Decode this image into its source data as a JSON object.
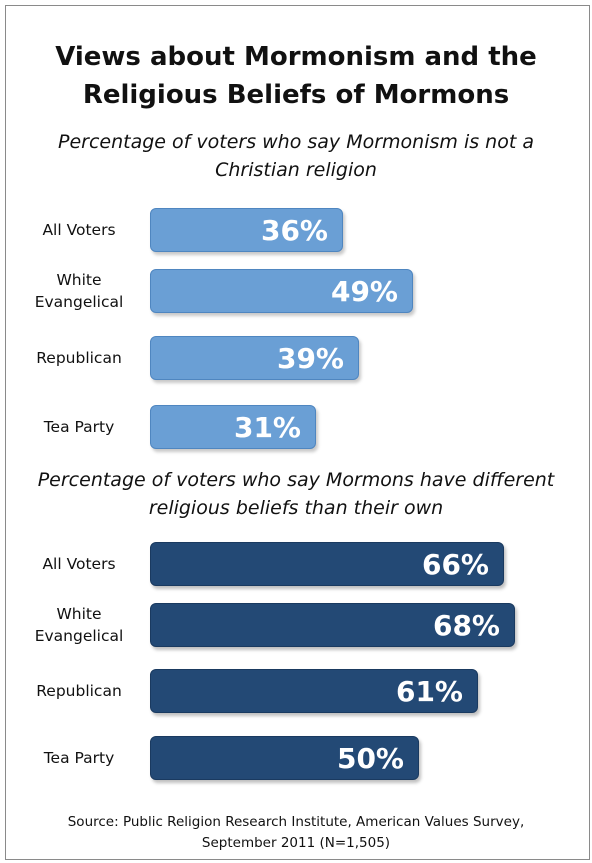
{
  "title_line1": "Views about Mormonism and the",
  "title_line2": "Religious Beliefs of Mormons",
  "source_line1": "Source: Public Religion Research Institute, American Values Survey,",
  "source_line2": "September 2011 (N=1,505)",
  "colors": {
    "panel1_bar": "#6a9fd5",
    "panel2_bar": "#234975",
    "label_text": "#ffffff"
  },
  "chart_data": [
    {
      "type": "bar",
      "orientation": "horizontal",
      "subtitle_line1": "Percentage of voters who say Mormonism is not a",
      "subtitle_line2": "Christian religion",
      "categories": [
        {
          "line1": "All Voters",
          "line2": ""
        },
        {
          "line1": "White",
          "line2": "Evangelical"
        },
        {
          "line1": "Republican",
          "line2": ""
        },
        {
          "line1": "Tea Party",
          "line2": ""
        }
      ],
      "values": [
        36,
        49,
        39,
        31
      ],
      "labels": [
        "36%",
        "49%",
        "39%",
        "31%"
      ],
      "unit": "%"
    },
    {
      "type": "bar",
      "orientation": "horizontal",
      "subtitle_line1": "Percentage of voters who say Mormons have different",
      "subtitle_line2": "religious beliefs than their own",
      "categories": [
        {
          "line1": "All Voters",
          "line2": ""
        },
        {
          "line1": "White",
          "line2": "Evangelical"
        },
        {
          "line1": "Republican",
          "line2": ""
        },
        {
          "line1": "Tea Party",
          "line2": ""
        }
      ],
      "values": [
        66,
        68,
        61,
        50
      ],
      "labels": [
        "66%",
        "68%",
        "61%",
        "50%"
      ],
      "unit": "%"
    }
  ]
}
